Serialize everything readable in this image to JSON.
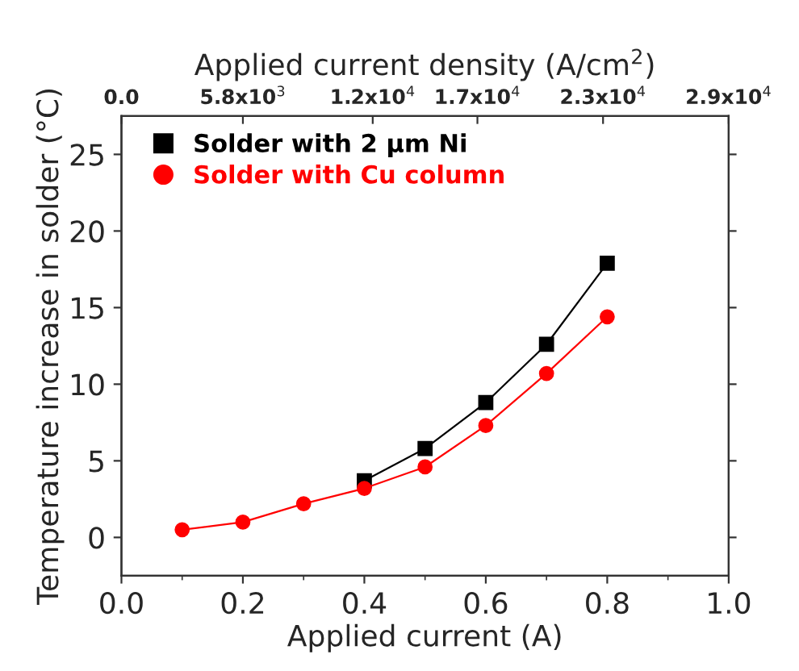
{
  "chart_data": {
    "type": "line",
    "xlabel": "Applied current (A)",
    "ylabel": "Temperature increase in solder (°C)",
    "x2label": "Applied current density (A/cm$^{2}$)",
    "x": [
      0.1,
      0.2,
      0.3,
      0.4,
      0.5,
      0.6,
      0.7,
      0.8
    ],
    "series": [
      {
        "name": "Solder with 2 µm Ni",
        "color": "#000000",
        "marker": "square",
        "values": [
          null,
          null,
          null,
          3.7,
          5.8,
          8.8,
          12.6,
          17.9
        ]
      },
      {
        "name": "Solder with Cu column",
        "color": "#ff0000",
        "marker": "circle",
        "values": [
          0.5,
          1.0,
          2.2,
          3.2,
          4.6,
          7.3,
          10.7,
          14.4
        ]
      }
    ],
    "xlim": [
      0.0,
      1.0
    ],
    "xticks": [
      {
        "value": 0.0,
        "label": "0.0"
      },
      0.2,
      0.4,
      0.6,
      0.8,
      {
        "value": 1.0,
        "label": "1.0"
      }
    ],
    "ylim": [
      -2.5,
      27.5
    ],
    "yticks": [
      0,
      5,
      10,
      15,
      20,
      25
    ],
    "x2lim": [
      0,
      29000
    ],
    "x2ticks": [
      {
        "value": 0,
        "label": "0.0"
      },
      {
        "value": 5800,
        "label": "5.8x10$^{3}$"
      },
      {
        "value": 12000,
        "label": "1.2x10$^{4}$"
      },
      {
        "value": 17000,
        "label": "1.7x10$^{4}$"
      },
      {
        "value": 23000,
        "label": "2.3x10$^{4}$"
      },
      {
        "value": 29000,
        "label": "2.9x10$^{4}$"
      }
    ],
    "legend": "top left",
    "grid": false,
    "line_style": "solid"
  }
}
